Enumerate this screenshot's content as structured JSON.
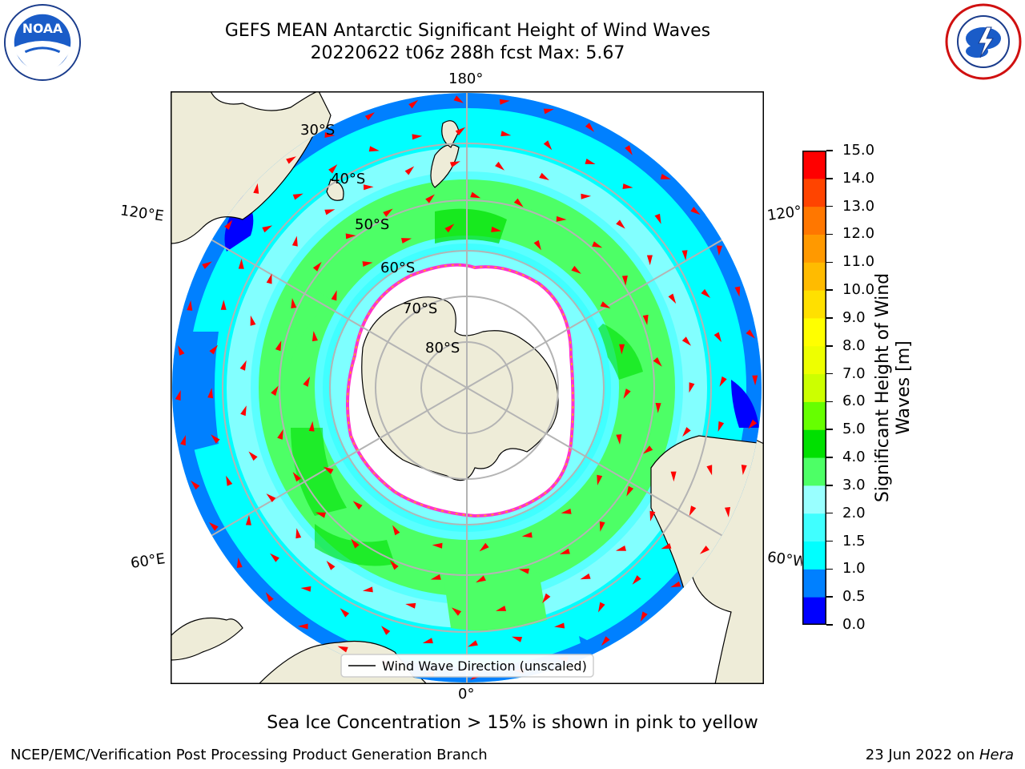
{
  "header": {
    "title_line1": "GEFS MEAN Antarctic Significant Height of Wind Waves",
    "title_line2": "20220622 t06z 288h fcst   Max: 5.67"
  },
  "logos": {
    "left": "noaa-logo",
    "right": "nws-logo",
    "left_text": "NOAA"
  },
  "map": {
    "projection": "south-polar-stereographic",
    "longitude_labels": {
      "top": "180°",
      "bottom": "0°",
      "left_upper": "120°E",
      "left_lower": "60°E",
      "right_upper": "120°",
      "right_lower": "60°W"
    },
    "latitude_labels": [
      "30°S",
      "40°S",
      "50°S",
      "60°S",
      "70°S",
      "80°S"
    ],
    "legend_label": "Wind Wave Direction (unscaled)",
    "colors": {
      "land": "#eeecd8",
      "ice": "#ffffff",
      "ice_edge": "#ff33cc",
      "arrow": "#ff0000",
      "grid": "#b4b4b4"
    }
  },
  "colorbar": {
    "label": "Significant Height of Wind Waves [m]",
    "ticks": [
      "0.0",
      "0.5",
      "1.0",
      "1.5",
      "2.0",
      "3.0",
      "4.0",
      "5.0",
      "6.0",
      "7.0",
      "8.0",
      "9.0",
      "10.0",
      "11.0",
      "12.0",
      "13.0",
      "14.0",
      "15.0"
    ],
    "colors": [
      "#0000ff",
      "#0080ff",
      "#00ffff",
      "#40ffff",
      "#99ffff",
      "#4dff66",
      "#00e000",
      "#66ff00",
      "#ccff00",
      "#eeff00",
      "#ffff00",
      "#ffe000",
      "#ffbb00",
      "#ff9900",
      "#ff7700",
      "#ff4400",
      "#ff0000"
    ]
  },
  "caption": "Sea Ice Concentration > 15% is shown in pink to yellow",
  "footer": {
    "left": "NCEP/EMC/Verification Post Processing Product Generation Branch",
    "right_date": "23 Jun 2022 on ",
    "right_host": "Hera"
  }
}
